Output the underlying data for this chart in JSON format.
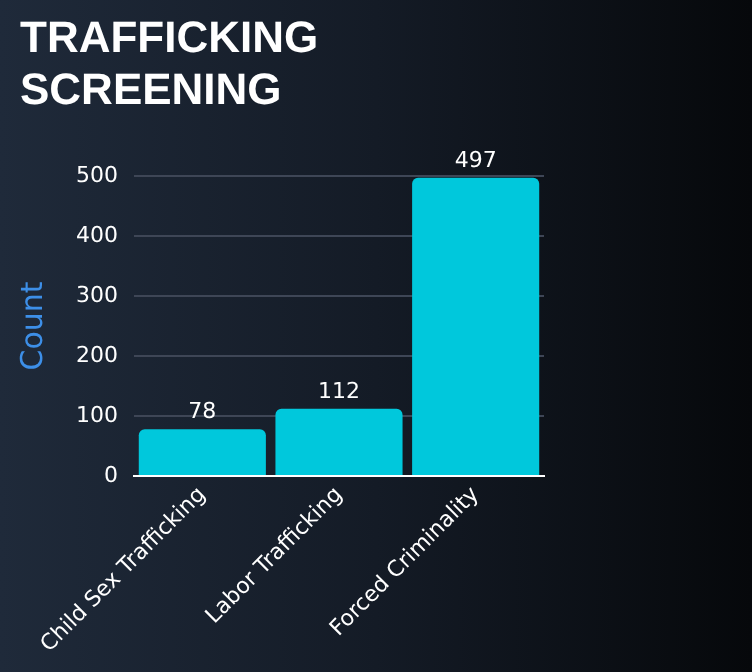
{
  "chart_data": {
    "type": "bar",
    "title": "TRAFFICKING SCREENING",
    "ylabel": "Count",
    "categories": [
      "Child Sex Trafficking",
      "Labor Trafficking",
      "Forced Criminality"
    ],
    "values": [
      78,
      112,
      497
    ],
    "color": "#00c8dc",
    "ylim": [
      0,
      500
    ],
    "yticks": [
      0,
      100,
      200,
      300,
      400,
      500
    ],
    "grid": "y",
    "legend": false,
    "data_labels": true
  }
}
